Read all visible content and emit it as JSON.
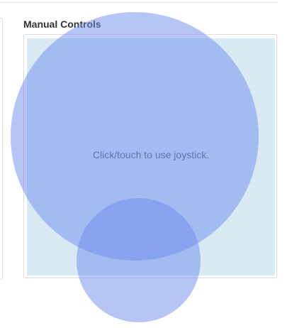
{
  "manual_controls": {
    "title": "Manual Controls",
    "joystick_hint": "Click/touch to use joystick."
  },
  "colors": {
    "joystick_area_background": "#d8ebf5",
    "joystick_fill": "#6e8cee"
  }
}
